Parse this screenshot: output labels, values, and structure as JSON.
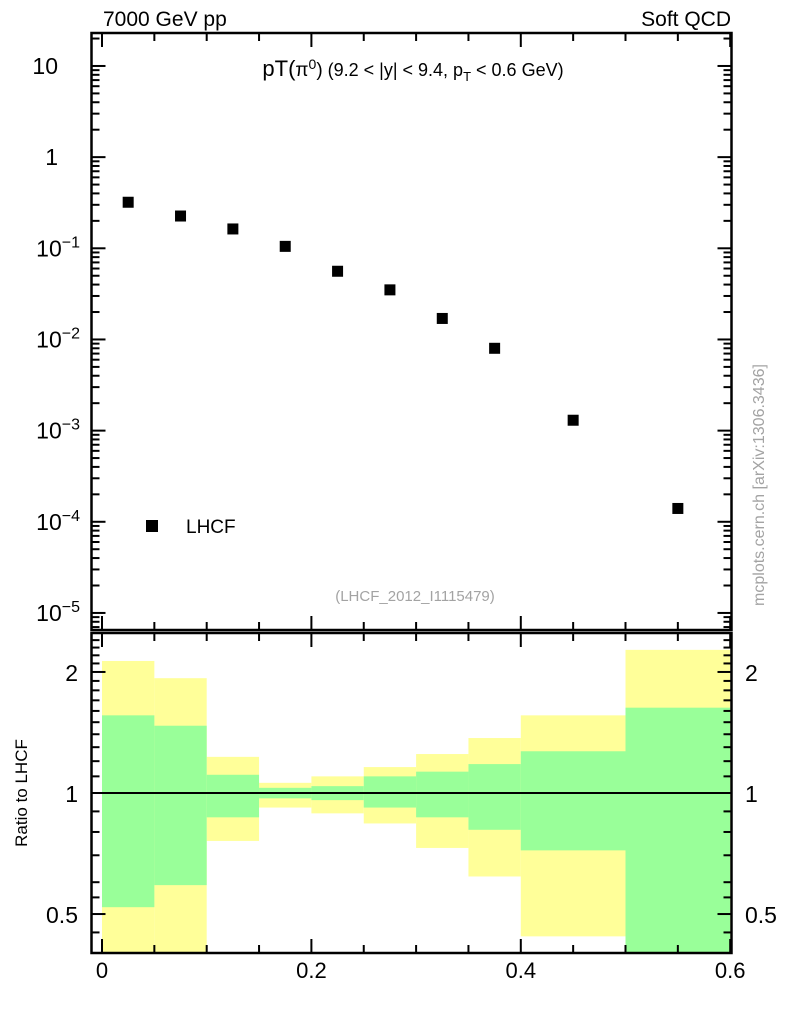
{
  "header": {
    "beam": "7000 GeV pp",
    "category": "Soft QCD"
  },
  "plot": {
    "reference_label": "(LHCF_2012_I1115479)",
    "watermark": "mcplots.cern.ch [arXiv:1306.3436]",
    "legend": [
      {
        "label": "LHCF",
        "marker": "filled-black-square"
      }
    ]
  },
  "colors": {
    "marker": "#000000",
    "band_total": "#ffff99",
    "band_stat": "#99ff99",
    "gray_text": "#a3a3a3",
    "axis": "#000000"
  },
  "chart_data": {
    "type": "scatter",
    "title": "pT(π0) (9.2 < |y| < 9.4, pT < 0.6 GeV)",
    "title_segments": [
      {
        "text": "pT(",
        "size": 22
      },
      {
        "text": "π",
        "size": 19
      },
      {
        "text": "0",
        "size": 14,
        "shift": "sup"
      },
      {
        "text": ")",
        "size": 19
      },
      {
        "text": " (9.2 < |y| < 9.4, p",
        "size": 18
      },
      {
        "text": "T",
        "size": 13,
        "shift": "sub"
      },
      {
        "text": " < 0.6 GeV)",
        "size": 18
      }
    ],
    "x_axis": {
      "range": [
        0,
        0.6
      ],
      "major_ticks": [
        0,
        0.2,
        0.4,
        0.6
      ],
      "tick_labels": [
        "0",
        "0.2",
        "0.4",
        "0.6"
      ],
      "minor_ticks": [
        0.05,
        0.1,
        0.15,
        0.25,
        0.3,
        0.35,
        0.45,
        0.5,
        0.55
      ]
    },
    "main_panel": {
      "y_scale": "log",
      "y_range": [
        6.5e-06,
        23
      ],
      "y_tick_values": [
        10,
        1,
        0.1,
        0.01,
        0.001,
        0.0001,
        1e-05
      ],
      "y_tick_labels": [
        "10",
        "1",
        "10^−1",
        "10^−2",
        "10^−3",
        "10^−4",
        "10^−5"
      ],
      "y_minor_ticks_per_decade": [
        2,
        3,
        4,
        5,
        6,
        7,
        8,
        9
      ],
      "grid": false,
      "series": [
        {
          "name": "LHCF",
          "marker": "filled-square",
          "color": "#000000",
          "x": [
            0.025,
            0.075,
            0.125,
            0.175,
            0.225,
            0.275,
            0.325,
            0.375,
            0.45,
            0.55
          ],
          "y": [
            0.32,
            0.226,
            0.163,
            0.105,
            0.056,
            0.035,
            0.017,
            0.008,
            0.0013,
            0.00014
          ]
        }
      ]
    },
    "ratio_panel": {
      "y_axis_label": "Ratio to LHCF",
      "y_scale": "log",
      "y_range": [
        0.4,
        2.5
      ],
      "y_tick_values": [
        2,
        1,
        0.5
      ],
      "y_tick_labels": [
        "2",
        "1",
        "0.5"
      ],
      "y_minor_ticks": [
        2.4,
        2.3,
        2.2,
        2.1,
        1.9,
        1.8,
        1.7,
        1.6,
        1.5,
        1.4,
        1.3,
        1.2,
        1.1,
        0.9,
        0.8,
        0.7,
        0.6,
        0.55,
        0.45
      ],
      "reference_line": 1.0,
      "bin_edges": [
        0,
        0.05,
        0.1,
        0.15,
        0.2,
        0.25,
        0.3,
        0.35,
        0.4,
        0.5,
        0.6
      ],
      "bands": [
        {
          "name": "total-uncertainty",
          "color": "#ffff99",
          "hi": [
            2.13,
            1.93,
            1.23,
            1.06,
            1.1,
            1.16,
            1.25,
            1.37,
            1.56,
            2.27
          ],
          "lo": [
            0.4,
            0.4,
            0.76,
            0.92,
            0.89,
            0.84,
            0.73,
            0.62,
            0.44,
            0.4
          ]
        },
        {
          "name": "stat-uncertainty",
          "color": "#99ff99",
          "hi": [
            1.56,
            1.47,
            1.11,
            1.03,
            1.04,
            1.1,
            1.13,
            1.18,
            1.27,
            1.63
          ],
          "lo": [
            0.52,
            0.59,
            0.87,
            0.97,
            0.96,
            0.92,
            0.87,
            0.81,
            0.72,
            0.4
          ]
        }
      ]
    }
  }
}
